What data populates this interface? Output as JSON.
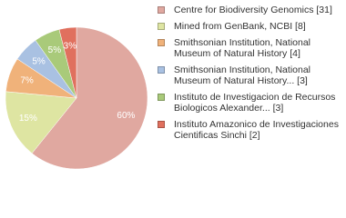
{
  "chart_data": {
    "type": "pie",
    "categories": [
      "Centre for Biodiversity Genomics [31]",
      "Mined from GenBank, NCBI [8]",
      "Smithsonian Institution, National Museum of Natural History [4]",
      "Smithsonian Institution, National Museum of Natural History... [3]",
      "Instituto de Investigacion de Recursos Biologicos Alexander... [3]",
      "Instituto Amazonico de Investigaciones Cientificas Sinchi [2]"
    ],
    "values": [
      31,
      8,
      4,
      3,
      3,
      2
    ],
    "value_labels": [
      "60%",
      "15%",
      "7%",
      "5%",
      "5%",
      "3%"
    ],
    "colors": [
      "#e0a8a0",
      "#dee5a2",
      "#f0b27a",
      "#a9c1e2",
      "#a9ca7a",
      "#e0705e"
    ]
  }
}
